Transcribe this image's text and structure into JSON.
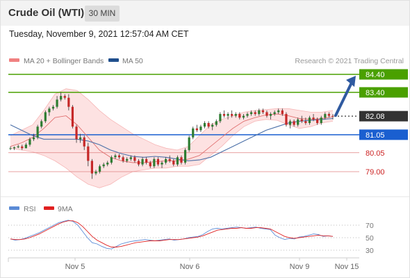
{
  "header": {
    "title": "Crude Oil (WTI)",
    "timeframe": "30 MIN",
    "datetime": "Tuesday, November 9, 2021 12:57:04 AM CET"
  },
  "legend": {
    "ma20_label": "MA 20 + Bollinger Bands",
    "ma50_label": "MA 50",
    "ma20_color": "#f08080",
    "ma50_color": "#1f4e8c",
    "copyright": "Research © 2021 Trading Central"
  },
  "rsi_legend": {
    "rsi_label": "RSI",
    "ma_label": "9MA",
    "rsi_color": "#5b8bd6",
    "ma_color": "#e02020"
  },
  "chart_data": {
    "type": "candlestick",
    "price_range": [
      77.8,
      85.2
    ],
    "levels": [
      {
        "value": 84.4,
        "label": "84.40",
        "kind": "target",
        "color": "#4aa000"
      },
      {
        "value": 83.4,
        "label": "83.40",
        "kind": "target",
        "color": "#4aa000"
      },
      {
        "value": 82.08,
        "label": "82.08",
        "kind": "last",
        "color": "#333333"
      },
      {
        "value": 81.05,
        "label": "81.05",
        "kind": "pivot",
        "color": "#1a5fd0"
      },
      {
        "value": 80.05,
        "label": "80.05",
        "kind": "support",
        "color": "#e08080"
      },
      {
        "value": 79.0,
        "label": "79.00",
        "kind": "support",
        "color": "#e08080"
      }
    ],
    "x_ticks": [
      "Nov 5",
      "Nov 6",
      "Nov 9",
      "Nov 15"
    ],
    "candles": [
      [
        80.3,
        80.4,
        80.2,
        80.3
      ],
      [
        80.3,
        80.4,
        80.2,
        80.35
      ],
      [
        80.35,
        80.5,
        80.3,
        80.4
      ],
      [
        80.4,
        80.5,
        80.2,
        80.3
      ],
      [
        80.3,
        80.6,
        80.3,
        80.5
      ],
      [
        80.5,
        80.9,
        80.4,
        80.8
      ],
      [
        80.8,
        81.1,
        80.7,
        80.9
      ],
      [
        80.9,
        81.6,
        80.8,
        81.5
      ],
      [
        81.5,
        81.9,
        81.4,
        81.8
      ],
      [
        81.8,
        82.4,
        81.7,
        82.3
      ],
      [
        82.3,
        82.6,
        82.1,
        82.5
      ],
      [
        82.5,
        82.7,
        82.4,
        82.6
      ],
      [
        82.6,
        83.2,
        82.5,
        83.0
      ],
      [
        83.0,
        83.4,
        82.9,
        83.2
      ],
      [
        83.2,
        83.3,
        83.0,
        83.1
      ],
      [
        83.1,
        83.3,
        82.4,
        82.6
      ],
      [
        82.6,
        82.7,
        81.4,
        81.5
      ],
      [
        81.5,
        81.6,
        80.6,
        80.8
      ],
      [
        80.8,
        81.1,
        80.6,
        80.9
      ],
      [
        80.9,
        81.0,
        80.2,
        80.4
      ],
      [
        80.4,
        80.6,
        79.3,
        79.6
      ],
      [
        79.6,
        79.7,
        78.6,
        78.9
      ],
      [
        78.9,
        79.1,
        78.8,
        79.0
      ],
      [
        79.0,
        79.4,
        78.9,
        79.3
      ],
      [
        79.3,
        79.5,
        79.2,
        79.4
      ],
      [
        79.4,
        79.6,
        79.3,
        79.5
      ],
      [
        79.5,
        79.9,
        79.4,
        79.8
      ],
      [
        79.8,
        80.0,
        79.7,
        79.9
      ],
      [
        79.9,
        80.0,
        79.7,
        79.8
      ],
      [
        79.8,
        79.9,
        79.5,
        79.6
      ],
      [
        79.6,
        79.8,
        79.5,
        79.7
      ],
      [
        79.7,
        79.9,
        79.6,
        79.8
      ],
      [
        79.8,
        79.9,
        79.5,
        79.6
      ],
      [
        79.6,
        79.7,
        79.3,
        79.4
      ],
      [
        79.4,
        79.8,
        79.3,
        79.7
      ],
      [
        79.7,
        79.8,
        79.4,
        79.5
      ],
      [
        79.5,
        79.6,
        79.2,
        79.3
      ],
      [
        79.3,
        79.8,
        79.2,
        79.7
      ],
      [
        79.7,
        79.8,
        79.3,
        79.4
      ],
      [
        79.4,
        79.6,
        79.2,
        79.5
      ],
      [
        79.5,
        79.8,
        79.4,
        79.7
      ],
      [
        79.7,
        79.9,
        79.5,
        79.6
      ],
      [
        79.6,
        79.7,
        79.3,
        79.4
      ],
      [
        79.4,
        79.9,
        79.3,
        79.8
      ],
      [
        79.8,
        79.9,
        79.4,
        79.5
      ],
      [
        79.5,
        80.3,
        79.4,
        80.2
      ],
      [
        80.2,
        81.0,
        80.1,
        80.9
      ],
      [
        80.9,
        81.5,
        80.8,
        81.4
      ],
      [
        81.4,
        81.6,
        81.2,
        81.3
      ],
      [
        81.3,
        81.6,
        81.2,
        81.5
      ],
      [
        81.5,
        81.8,
        81.4,
        81.7
      ],
      [
        81.7,
        81.8,
        81.4,
        81.5
      ],
      [
        81.5,
        81.7,
        81.3,
        81.6
      ],
      [
        81.6,
        81.9,
        81.5,
        81.8
      ],
      [
        81.8,
        82.3,
        81.7,
        82.2
      ],
      [
        82.2,
        82.4,
        82.0,
        82.1
      ],
      [
        82.1,
        82.3,
        81.9,
        82.2
      ],
      [
        82.2,
        82.4,
        82.0,
        82.1
      ],
      [
        82.1,
        82.3,
        82.0,
        82.2
      ],
      [
        82.2,
        82.3,
        81.9,
        82.0
      ],
      [
        82.0,
        82.2,
        81.9,
        82.1
      ],
      [
        82.1,
        82.3,
        82.0,
        82.2
      ],
      [
        82.2,
        82.4,
        82.1,
        82.3
      ],
      [
        82.3,
        82.4,
        82.1,
        82.2
      ],
      [
        82.2,
        82.5,
        82.1,
        82.4
      ],
      [
        82.4,
        82.5,
        82.2,
        82.3
      ],
      [
        82.3,
        82.4,
        82.0,
        82.1
      ],
      [
        82.1,
        82.3,
        81.9,
        82.2
      ],
      [
        82.2,
        82.4,
        82.1,
        82.3
      ],
      [
        82.3,
        82.5,
        82.2,
        82.4
      ],
      [
        82.4,
        82.5,
        82.1,
        82.2
      ],
      [
        82.2,
        82.3,
        81.5,
        81.6
      ],
      [
        81.6,
        81.9,
        81.4,
        81.8
      ],
      [
        81.8,
        81.9,
        81.5,
        81.6
      ],
      [
        81.6,
        82.0,
        81.5,
        81.9
      ],
      [
        81.9,
        82.1,
        81.7,
        81.8
      ],
      [
        81.8,
        82.0,
        81.6,
        81.7
      ],
      [
        81.7,
        82.1,
        81.6,
        82.0
      ],
      [
        82.0,
        82.2,
        81.8,
        81.9
      ],
      [
        81.9,
        82.0,
        81.6,
        81.7
      ],
      [
        81.7,
        82.1,
        81.6,
        82.0
      ],
      [
        82.0,
        82.3,
        81.9,
        82.2
      ],
      [
        82.2,
        82.3,
        82.0,
        82.1
      ],
      [
        82.1,
        82.2,
        81.9,
        82.08
      ]
    ],
    "bb_upper": [
      81.0,
      81.3,
      81.6,
      82.4,
      83.3,
      83.6,
      83.5,
      83.0,
      82.4,
      81.9,
      81.5,
      81.1,
      80.8,
      80.5,
      80.3,
      80.2,
      80.4,
      81.0,
      81.6,
      81.9,
      82.1,
      82.3,
      82.4,
      82.45,
      82.5,
      82.5,
      82.4,
      82.3,
      82.3,
      82.4
    ],
    "bb_lower": [
      80.3,
      80.2,
      80.1,
      79.9,
      79.6,
      79.2,
      78.7,
      78.3,
      78.1,
      78.3,
      78.7,
      79.0,
      79.1,
      79.2,
      79.2,
      79.3,
      79.3,
      79.4,
      79.9,
      80.4,
      81.0,
      81.5,
      81.8,
      81.9,
      81.85,
      81.6,
      81.4,
      81.5,
      81.7,
      81.8
    ],
    "ma20": [
      80.4,
      80.6,
      80.9,
      81.4,
      82.0,
      82.1,
      81.6,
      80.9,
      80.2,
      79.8,
      79.6,
      79.5,
      79.5,
      79.55,
      79.6,
      79.6,
      79.7,
      79.9,
      80.4,
      80.9,
      81.4,
      81.8,
      82.0,
      82.15,
      82.2,
      82.1,
      81.95,
      81.9,
      81.95,
      82.05
    ],
    "ma50": [
      81.6,
      81.3,
      81.0,
      80.8,
      80.8,
      80.8,
      80.8,
      80.7,
      80.5,
      80.2,
      80.0,
      79.85,
      79.8,
      79.85,
      79.8,
      79.7,
      79.6,
      79.65,
      79.8,
      80.1,
      80.4,
      80.7,
      81.0,
      81.3,
      81.5,
      81.7,
      81.8,
      81.85,
      81.9,
      81.95
    ],
    "rsi_ticks": [
      70,
      50,
      30
    ],
    "rsi": [
      48,
      46,
      47,
      49,
      52,
      55,
      58,
      62,
      66,
      70,
      74,
      76,
      78,
      76,
      70,
      60,
      50,
      42,
      40,
      36,
      33,
      32,
      36,
      40,
      42,
      44,
      45,
      46,
      47,
      46,
      45,
      46,
      47,
      48,
      46,
      47,
      48,
      50,
      51,
      52,
      55,
      60,
      64,
      65,
      64,
      65,
      66,
      67,
      66,
      65,
      66,
      67,
      65,
      64,
      63,
      54,
      50,
      47,
      49,
      48,
      51,
      52,
      54,
      56,
      55,
      52,
      53,
      52
    ],
    "rsi_ma": [
      48,
      47,
      47,
      48,
      50,
      53,
      56,
      60,
      64,
      68,
      72,
      75,
      77,
      77,
      74,
      68,
      60,
      52,
      46,
      42,
      38,
      35,
      35,
      36,
      38,
      40,
      42,
      43,
      44,
      45,
      45,
      45,
      46,
      47,
      47,
      47,
      48,
      49,
      50,
      51,
      53,
      56,
      59,
      62,
      63,
      64,
      65,
      65,
      66,
      65,
      65,
      66,
      66,
      65,
      64,
      60,
      56,
      52,
      50,
      49,
      50,
      51,
      52,
      53,
      54,
      53,
      53,
      52
    ]
  }
}
